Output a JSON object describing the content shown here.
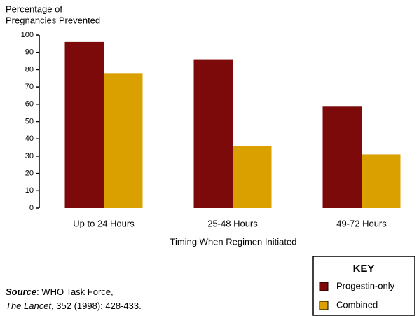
{
  "chart_data": {
    "type": "bar",
    "ylabel": [
      "Percentage of",
      "Pregnancies Prevented"
    ],
    "xlabel": "Timing When Regimen Initiated",
    "categories": [
      "Up to 24 Hours",
      "25-48 Hours",
      "49-72 Hours"
    ],
    "series": [
      {
        "name": "Progestin-only",
        "color": "#7c0a0a",
        "values": [
          96,
          86,
          59
        ]
      },
      {
        "name": "Combined",
        "color": "#d9a000",
        "values": [
          78,
          36,
          31
        ]
      }
    ],
    "ylim": [
      0,
      100
    ],
    "yticks": [
      0,
      10,
      20,
      30,
      40,
      50,
      60,
      70,
      80,
      90,
      100
    ],
    "legend": {
      "title": "KEY",
      "position": "lower right"
    },
    "source": {
      "label": "Source",
      "text": ": WHO Task Force,",
      "journal": "The Lancet",
      "citation": ", 352 (1998): 428-433."
    }
  }
}
